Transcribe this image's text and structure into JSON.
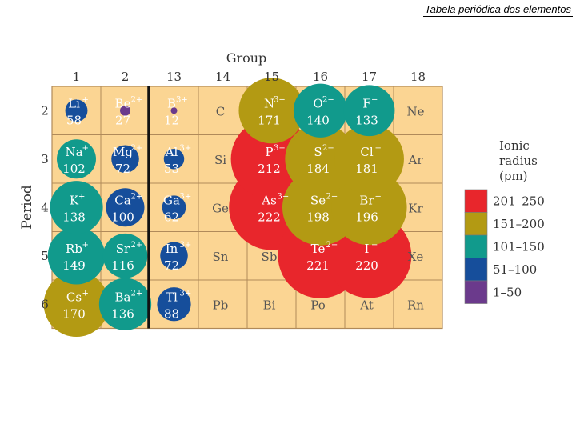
{
  "slide_title": "Tabela periódica dos elementos",
  "group_axis_label": "Group",
  "period_axis_label": "Period",
  "groups": [
    "1",
    "2",
    "13",
    "14",
    "15",
    "16",
    "17",
    "18"
  ],
  "periods": [
    "2",
    "3",
    "4",
    "5",
    "6"
  ],
  "legend": {
    "title_lines": [
      "Ionic",
      "radius",
      "(pm)"
    ],
    "entries": [
      {
        "label": "201–250",
        "color": "#e8262c"
      },
      {
        "label": "151–200",
        "color": "#b39a13"
      },
      {
        "label": "101–150",
        "color": "#119a8c"
      },
      {
        "label": "51–100",
        "color": "#164e9b"
      },
      {
        "label": "1–50",
        "color": "#6b3a8c"
      }
    ]
  },
  "colors": {
    "cell": "#fbd593",
    "cell_border": "#b08a5a",
    "divider": "#111111"
  },
  "elements": [
    {
      "period": 0,
      "group": 0,
      "sym": "Li",
      "chg": "+",
      "r": "58"
    },
    {
      "period": 0,
      "group": 1,
      "sym": "Be",
      "chg": "2+",
      "r": "27"
    },
    {
      "period": 0,
      "group": 2,
      "sym": "B",
      "chg": "3+",
      "r": "12"
    },
    {
      "period": 0,
      "group": 3,
      "sym": "C",
      "chg": "",
      "r": ""
    },
    {
      "period": 0,
      "group": 4,
      "sym": "N",
      "chg": "3−",
      "r": "171"
    },
    {
      "period": 0,
      "group": 5,
      "sym": "O",
      "chg": "2−",
      "r": "140"
    },
    {
      "period": 0,
      "group": 6,
      "sym": "F",
      "chg": "−",
      "r": "133"
    },
    {
      "period": 0,
      "group": 7,
      "sym": "Ne",
      "chg": "",
      "r": ""
    },
    {
      "period": 1,
      "group": 0,
      "sym": "Na",
      "chg": "+",
      "r": "102"
    },
    {
      "period": 1,
      "group": 1,
      "sym": "Mg",
      "chg": "2+",
      "r": "72"
    },
    {
      "period": 1,
      "group": 2,
      "sym": "Al",
      "chg": "3+",
      "r": "53"
    },
    {
      "period": 1,
      "group": 3,
      "sym": "Si",
      "chg": "",
      "r": ""
    },
    {
      "period": 1,
      "group": 4,
      "sym": "P",
      "chg": "3−",
      "r": "212"
    },
    {
      "period": 1,
      "group": 5,
      "sym": "S",
      "chg": "2−",
      "r": "184"
    },
    {
      "period": 1,
      "group": 6,
      "sym": "Cl",
      "chg": "−",
      "r": "181"
    },
    {
      "period": 1,
      "group": 7,
      "sym": "Ar",
      "chg": "",
      "r": ""
    },
    {
      "period": 2,
      "group": 0,
      "sym": "K",
      "chg": "+",
      "r": "138"
    },
    {
      "period": 2,
      "group": 1,
      "sym": "Ca",
      "chg": "2+",
      "r": "100"
    },
    {
      "period": 2,
      "group": 2,
      "sym": "Ga",
      "chg": "3+",
      "r": "62"
    },
    {
      "period": 2,
      "group": 3,
      "sym": "Ge",
      "chg": "",
      "r": ""
    },
    {
      "period": 2,
      "group": 4,
      "sym": "As",
      "chg": "3−",
      "r": "222"
    },
    {
      "period": 2,
      "group": 5,
      "sym": "Se",
      "chg": "2−",
      "r": "198"
    },
    {
      "period": 2,
      "group": 6,
      "sym": "Br",
      "chg": "−",
      "r": "196"
    },
    {
      "period": 2,
      "group": 7,
      "sym": "Kr",
      "chg": "",
      "r": ""
    },
    {
      "period": 3,
      "group": 0,
      "sym": "Rb",
      "chg": "+",
      "r": "149"
    },
    {
      "period": 3,
      "group": 1,
      "sym": "Sr",
      "chg": "2+",
      "r": "116"
    },
    {
      "period": 3,
      "group": 2,
      "sym": "In",
      "chg": "3+",
      "r": "72"
    },
    {
      "period": 3,
      "group": 3,
      "sym": "Sn",
      "chg": "",
      "r": ""
    },
    {
      "period": 3,
      "group": 4,
      "sym": "Sb",
      "chg": "",
      "r": ""
    },
    {
      "period": 3,
      "group": 5,
      "sym": "Te",
      "chg": "2−",
      "r": "221"
    },
    {
      "period": 3,
      "group": 6,
      "sym": "I",
      "chg": "−",
      "r": "220"
    },
    {
      "period": 3,
      "group": 7,
      "sym": "Xe",
      "chg": "",
      "r": ""
    },
    {
      "period": 4,
      "group": 0,
      "sym": "Cs",
      "chg": "+",
      "r": "170"
    },
    {
      "period": 4,
      "group": 1,
      "sym": "Ba",
      "chg": "2+",
      "r": "136"
    },
    {
      "period": 4,
      "group": 2,
      "sym": "Tl",
      "chg": "3+",
      "r": "88"
    },
    {
      "period": 4,
      "group": 3,
      "sym": "Pb",
      "chg": "",
      "r": ""
    },
    {
      "period": 4,
      "group": 4,
      "sym": "Bi",
      "chg": "",
      "r": ""
    },
    {
      "period": 4,
      "group": 5,
      "sym": "Po",
      "chg": "",
      "r": ""
    },
    {
      "period": 4,
      "group": 6,
      "sym": "At",
      "chg": "",
      "r": ""
    },
    {
      "period": 4,
      "group": 7,
      "sym": "Rn",
      "chg": "",
      "r": ""
    }
  ]
}
